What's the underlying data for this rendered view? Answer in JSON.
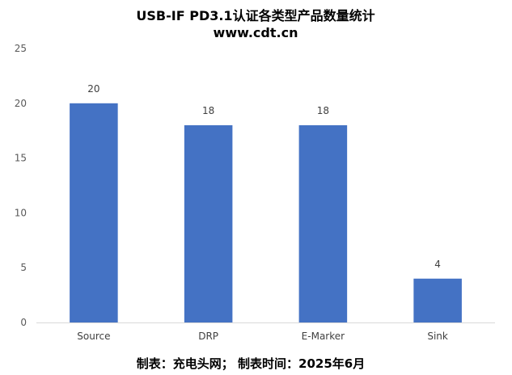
{
  "chart_data": {
    "type": "bar",
    "title": "USB-IF PD3.1认证各类型产品数量统计",
    "subtitle": "www.cdt.cn",
    "categories": [
      "Source",
      "DRP",
      "E-Marker",
      "Sink"
    ],
    "values": [
      20,
      18,
      18,
      4
    ],
    "ylim": [
      0,
      25
    ],
    "yticks": [
      0,
      5,
      10,
      15,
      20,
      25
    ],
    "xlabel": "",
    "ylabel": "",
    "grid": false,
    "legend": "none",
    "bar_color": "#4472C4",
    "footer": "制表：充电头网； 制表时间：2025年6月"
  }
}
